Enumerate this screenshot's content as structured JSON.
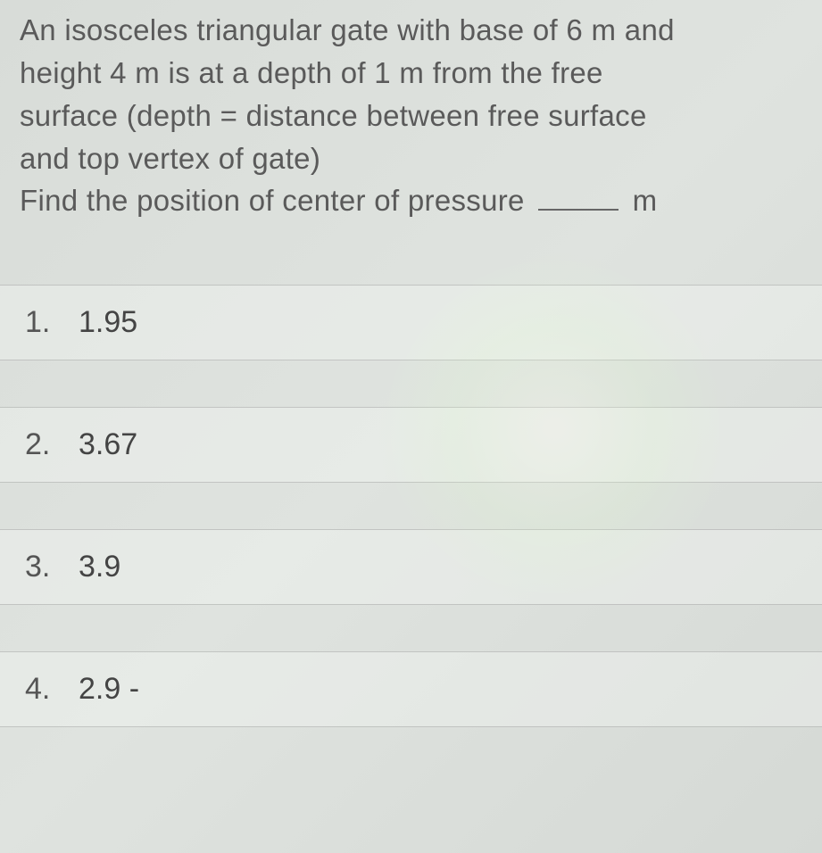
{
  "question": {
    "text_line1": "An isosceles triangular gate with base of 6 m and",
    "text_line2": "height 4 m is at a depth of 1 m from the free",
    "text_line3": "surface (depth = distance between free surface",
    "text_line4": "and top vertex of gate)",
    "prompt_prefix": "Find the position of center of pressure",
    "prompt_unit": "m"
  },
  "options": [
    {
      "num": "1.",
      "value": "1.95"
    },
    {
      "num": "2.",
      "value": "3.67"
    },
    {
      "num": "3.",
      "value": "3.9"
    },
    {
      "num": "4.",
      "value": "2.9 -"
    }
  ],
  "colors": {
    "background": "#d8dcd8",
    "text": "#5a5a5a",
    "option_bg": "rgba(245,248,245,0.35)",
    "border": "rgba(140,140,140,0.4)"
  },
  "typography": {
    "question_fontsize": 33,
    "option_fontsize": 34,
    "font_family": "Arial"
  }
}
